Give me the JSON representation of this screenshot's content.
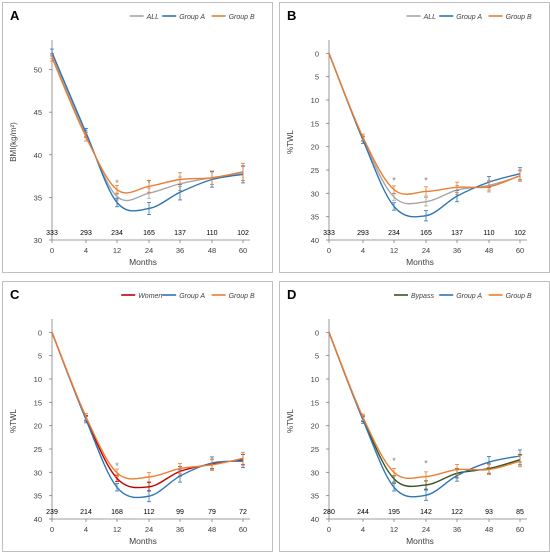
{
  "panels_caption": "",
  "chart_data": [
    {
      "panel_letter": "A",
      "type": "line",
      "x": [
        0,
        4,
        12,
        24,
        36,
        48,
        60
      ],
      "xlabel": "Months",
      "ylabel": "BMI(kg/m²)",
      "ylim": [
        30,
        53
      ],
      "yticks": [
        30,
        35,
        40,
        45,
        50
      ],
      "y_inverted": false,
      "counts": [
        "333",
        "293",
        "234",
        "165",
        "137",
        "110",
        "102"
      ],
      "significance": [
        {
          "x": 12,
          "y": 36.7,
          "label": "*"
        },
        {
          "x": 24,
          "y": 36.7,
          "label": "*"
        }
      ],
      "series": [
        {
          "name": "ALL",
          "color": "#a6a6a6",
          "values": [
            51.6,
            42.4,
            35.1,
            35.5,
            36.6,
            37.3,
            37.8
          ],
          "errors": [
            0.3,
            0.4,
            0.4,
            0.6,
            0.8,
            0.8,
            0.8
          ]
        },
        {
          "name": "Group A",
          "color": "#2e75b6",
          "values": [
            52.0,
            42.6,
            34.4,
            33.7,
            35.6,
            37.1,
            37.7
          ],
          "errors": [
            0.4,
            0.5,
            0.5,
            0.7,
            0.9,
            0.9,
            1.0
          ]
        },
        {
          "name": "Group B",
          "color": "#ed7d31",
          "values": [
            51.4,
            42.1,
            35.9,
            36.3,
            37.1,
            37.3,
            38.0
          ],
          "errors": [
            0.4,
            0.5,
            0.5,
            0.7,
            0.8,
            0.8,
            1.0
          ]
        }
      ],
      "legend": "top-right"
    },
    {
      "panel_letter": "B",
      "type": "line",
      "x": [
        0,
        4,
        12,
        24,
        36,
        48,
        60
      ],
      "xlabel": "Months",
      "ylabel": "%TWL",
      "ylim": [
        -2,
        40
      ],
      "yticks": [
        0,
        5,
        10,
        15,
        20,
        25,
        30,
        35,
        40
      ],
      "y_inverted": true,
      "counts": [
        "333",
        "293",
        "234",
        "165",
        "137",
        "110",
        "102"
      ],
      "significance": [
        {
          "x": 12,
          "y": 27.3,
          "label": "*"
        },
        {
          "x": 24,
          "y": 27.3,
          "label": "*"
        }
      ],
      "series": [
        {
          "name": "ALL",
          "color": "#a6a6a6",
          "values": [
            0,
            18.3,
            30.8,
            31.8,
            29.3,
            28.3,
            26.3
          ],
          "errors": [
            0,
            0.6,
            0.7,
            0.9,
            1.0,
            1.0,
            1.1
          ]
        },
        {
          "name": "Group A",
          "color": "#2e75b6",
          "values": [
            0,
            18.6,
            32.8,
            34.8,
            30.6,
            27.6,
            25.8
          ],
          "errors": [
            0,
            0.7,
            0.8,
            1.1,
            1.2,
            1.2,
            1.3
          ]
        },
        {
          "name": "Group B",
          "color": "#ed7d31",
          "values": [
            0,
            18.0,
            29.2,
            29.6,
            28.7,
            28.6,
            26.2
          ],
          "errors": [
            0,
            0.7,
            0.8,
            1.0,
            1.1,
            1.1,
            1.2
          ]
        }
      ],
      "legend": "top-right"
    },
    {
      "panel_letter": "C",
      "type": "line",
      "x": [
        0,
        4,
        12,
        24,
        36,
        48,
        60
      ],
      "xlabel": "Months",
      "ylabel": "%TWL",
      "ylim": [
        -2,
        40
      ],
      "yticks": [
        0,
        5,
        10,
        15,
        20,
        25,
        30,
        35,
        40
      ],
      "y_inverted": true,
      "counts": [
        "239",
        "214",
        "168",
        "112",
        "99",
        "79",
        "72"
      ],
      "significance": [
        {
          "x": 12,
          "y": 28.6,
          "label": "*"
        }
      ],
      "series": [
        {
          "name": "Women",
          "color": "#c00000",
          "values": [
            0,
            18.4,
            31.3,
            33.1,
            29.8,
            28.2,
            27.3
          ],
          "errors": [
            0,
            0.6,
            0.7,
            0.9,
            1.0,
            1.0,
            1.1
          ]
        },
        {
          "name": "Group A",
          "color": "#2e75b6",
          "values": [
            0,
            18.7,
            33.2,
            35.1,
            30.8,
            28.0,
            27.6
          ],
          "errors": [
            0,
            0.7,
            0.8,
            1.2,
            1.3,
            1.3,
            1.4
          ]
        },
        {
          "name": "Group B",
          "color": "#ed7d31",
          "values": [
            0,
            18.1,
            30.1,
            31.0,
            29.2,
            28.4,
            27.0
          ],
          "errors": [
            0,
            0.7,
            0.8,
            1.0,
            1.1,
            1.2,
            1.3
          ]
        }
      ],
      "legend": "top-right"
    },
    {
      "panel_letter": "D",
      "type": "line",
      "x": [
        0,
        4,
        12,
        24,
        36,
        48,
        60
      ],
      "xlabel": "Months",
      "ylabel": "%TWL",
      "ylim": [
        -2,
        40
      ],
      "yticks": [
        0,
        5,
        10,
        15,
        20,
        25,
        30,
        35,
        40
      ],
      "y_inverted": true,
      "counts": [
        "280",
        "244",
        "195",
        "142",
        "122",
        "93",
        "85"
      ],
      "significance": [
        {
          "x": 12,
          "y": 27.6,
          "label": "*"
        },
        {
          "x": 24,
          "y": 28.1,
          "label": "*"
        }
      ],
      "series": [
        {
          "name": "Bypass",
          "color": "#375623",
          "values": [
            0,
            18.5,
            31.4,
            32.7,
            30.2,
            29.2,
            27.3
          ],
          "errors": [
            0,
            0.6,
            0.7,
            0.9,
            1.0,
            1.0,
            1.1
          ]
        },
        {
          "name": "Group A",
          "color": "#2e75b6",
          "values": [
            0,
            18.8,
            33.2,
            34.9,
            30.7,
            27.8,
            26.5
          ],
          "errors": [
            0,
            0.7,
            0.8,
            1.1,
            1.2,
            1.2,
            1.3
          ]
        },
        {
          "name": "Group B",
          "color": "#ed7d31",
          "values": [
            0,
            18.2,
            30.0,
            30.9,
            29.4,
            29.4,
            27.6
          ],
          "errors": [
            0,
            0.7,
            0.8,
            1.0,
            1.1,
            1.1,
            1.2
          ]
        }
      ],
      "legend": "top-right"
    }
  ]
}
